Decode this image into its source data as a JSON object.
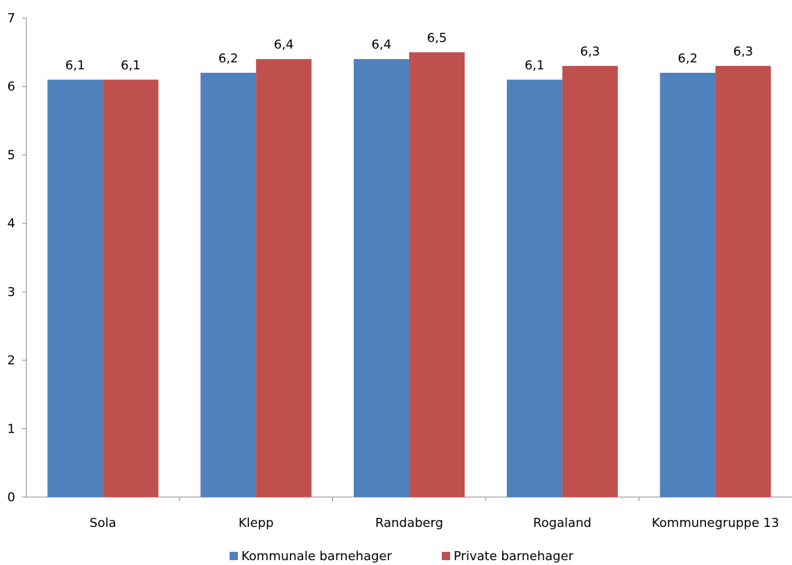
{
  "chart_data": {
    "type": "bar",
    "title": "",
    "xlabel": "",
    "ylabel": "",
    "categories": [
      "Sola",
      "Klepp",
      "Randaberg",
      "Rogaland",
      "Kommunegruppe 13"
    ],
    "series": [
      {
        "name": "Kommunale barnehager",
        "values": [
          6.1,
          6.2,
          6.4,
          6.1,
          6.2
        ],
        "labels": [
          "6,1",
          "6,2",
          "6,4",
          "6,1",
          "6,2"
        ],
        "color": "#4F81BD"
      },
      {
        "name": "Private barnehager",
        "values": [
          6.1,
          6.4,
          6.5,
          6.3,
          6.3
        ],
        "labels": [
          "6,1",
          "6,4",
          "6,5",
          "6,3",
          "6,3"
        ],
        "color": "#C0504D"
      }
    ],
    "ylim": [
      0,
      7
    ],
    "yticks": [
      0,
      1,
      2,
      3,
      4,
      5,
      6,
      7
    ],
    "grid": false,
    "legend": "bottom"
  }
}
